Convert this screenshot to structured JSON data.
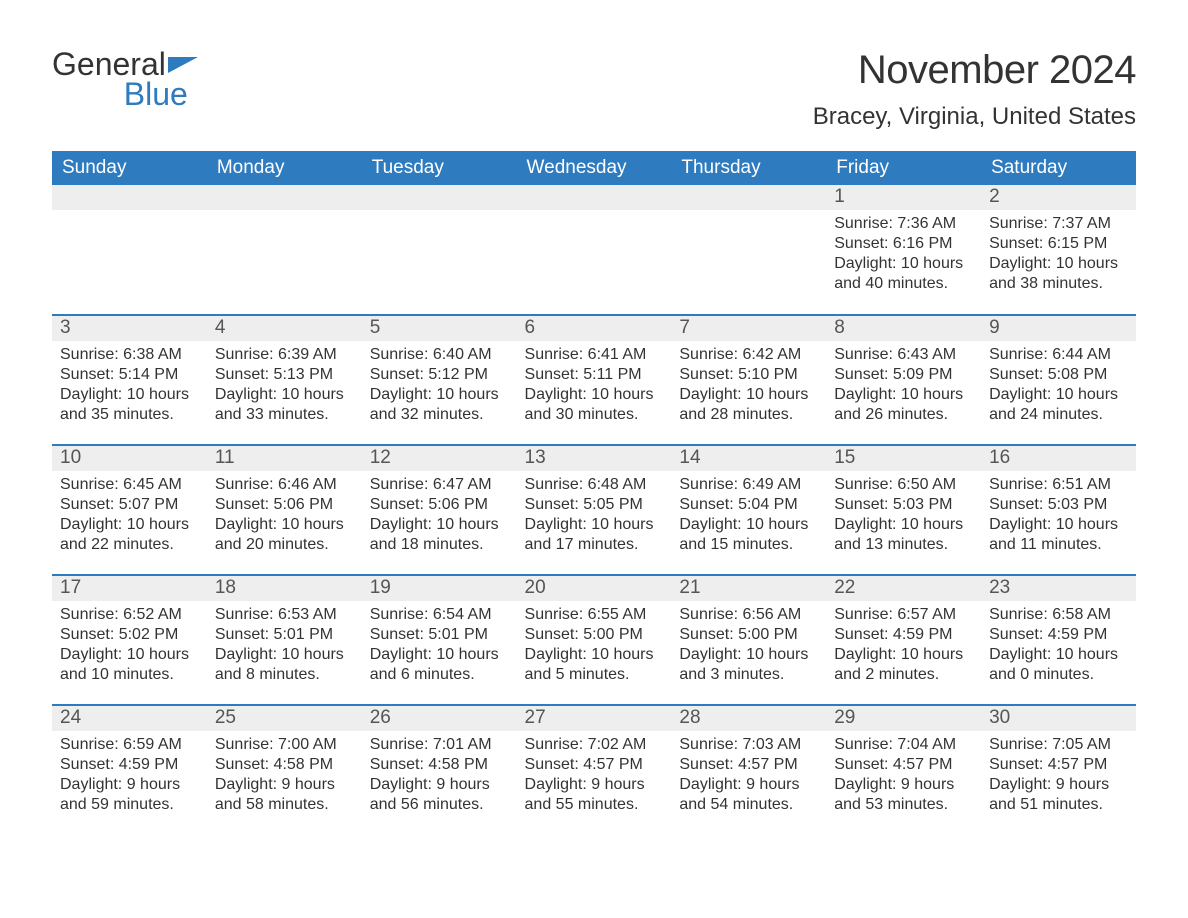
{
  "logo": {
    "text_general": "General",
    "text_blue": "Blue",
    "flag_color": "#2f7bbf"
  },
  "title": "November 2024",
  "location": "Bracey, Virginia, United States",
  "colors": {
    "header_bg": "#2f7bbf",
    "header_text": "#ffffff",
    "daynum_bg": "#eeeeee",
    "daynum_text": "#555555",
    "body_text": "#333333",
    "row_divider": "#2f7bbf",
    "page_bg": "#ffffff"
  },
  "typography": {
    "title_fontsize": 40,
    "location_fontsize": 24,
    "header_fontsize": 19,
    "daynum_fontsize": 19,
    "details_fontsize": 16,
    "logo_fontsize": 32
  },
  "weekdays": [
    "Sunday",
    "Monday",
    "Tuesday",
    "Wednesday",
    "Thursday",
    "Friday",
    "Saturday"
  ],
  "weeks": [
    [
      null,
      null,
      null,
      null,
      null,
      {
        "n": "1",
        "sunrise": "7:36 AM",
        "sunset": "6:16 PM",
        "daylight": "10 hours and 40 minutes."
      },
      {
        "n": "2",
        "sunrise": "7:37 AM",
        "sunset": "6:15 PM",
        "daylight": "10 hours and 38 minutes."
      }
    ],
    [
      {
        "n": "3",
        "sunrise": "6:38 AM",
        "sunset": "5:14 PM",
        "daylight": "10 hours and 35 minutes."
      },
      {
        "n": "4",
        "sunrise": "6:39 AM",
        "sunset": "5:13 PM",
        "daylight": "10 hours and 33 minutes."
      },
      {
        "n": "5",
        "sunrise": "6:40 AM",
        "sunset": "5:12 PM",
        "daylight": "10 hours and 32 minutes."
      },
      {
        "n": "6",
        "sunrise": "6:41 AM",
        "sunset": "5:11 PM",
        "daylight": "10 hours and 30 minutes."
      },
      {
        "n": "7",
        "sunrise": "6:42 AM",
        "sunset": "5:10 PM",
        "daylight": "10 hours and 28 minutes."
      },
      {
        "n": "8",
        "sunrise": "6:43 AM",
        "sunset": "5:09 PM",
        "daylight": "10 hours and 26 minutes."
      },
      {
        "n": "9",
        "sunrise": "6:44 AM",
        "sunset": "5:08 PM",
        "daylight": "10 hours and 24 minutes."
      }
    ],
    [
      {
        "n": "10",
        "sunrise": "6:45 AM",
        "sunset": "5:07 PM",
        "daylight": "10 hours and 22 minutes."
      },
      {
        "n": "11",
        "sunrise": "6:46 AM",
        "sunset": "5:06 PM",
        "daylight": "10 hours and 20 minutes."
      },
      {
        "n": "12",
        "sunrise": "6:47 AM",
        "sunset": "5:06 PM",
        "daylight": "10 hours and 18 minutes."
      },
      {
        "n": "13",
        "sunrise": "6:48 AM",
        "sunset": "5:05 PM",
        "daylight": "10 hours and 17 minutes."
      },
      {
        "n": "14",
        "sunrise": "6:49 AM",
        "sunset": "5:04 PM",
        "daylight": "10 hours and 15 minutes."
      },
      {
        "n": "15",
        "sunrise": "6:50 AM",
        "sunset": "5:03 PM",
        "daylight": "10 hours and 13 minutes."
      },
      {
        "n": "16",
        "sunrise": "6:51 AM",
        "sunset": "5:03 PM",
        "daylight": "10 hours and 11 minutes."
      }
    ],
    [
      {
        "n": "17",
        "sunrise": "6:52 AM",
        "sunset": "5:02 PM",
        "daylight": "10 hours and 10 minutes."
      },
      {
        "n": "18",
        "sunrise": "6:53 AM",
        "sunset": "5:01 PM",
        "daylight": "10 hours and 8 minutes."
      },
      {
        "n": "19",
        "sunrise": "6:54 AM",
        "sunset": "5:01 PM",
        "daylight": "10 hours and 6 minutes."
      },
      {
        "n": "20",
        "sunrise": "6:55 AM",
        "sunset": "5:00 PM",
        "daylight": "10 hours and 5 minutes."
      },
      {
        "n": "21",
        "sunrise": "6:56 AM",
        "sunset": "5:00 PM",
        "daylight": "10 hours and 3 minutes."
      },
      {
        "n": "22",
        "sunrise": "6:57 AM",
        "sunset": "4:59 PM",
        "daylight": "10 hours and 2 minutes."
      },
      {
        "n": "23",
        "sunrise": "6:58 AM",
        "sunset": "4:59 PM",
        "daylight": "10 hours and 0 minutes."
      }
    ],
    [
      {
        "n": "24",
        "sunrise": "6:59 AM",
        "sunset": "4:59 PM",
        "daylight": "9 hours and 59 minutes."
      },
      {
        "n": "25",
        "sunrise": "7:00 AM",
        "sunset": "4:58 PM",
        "daylight": "9 hours and 58 minutes."
      },
      {
        "n": "26",
        "sunrise": "7:01 AM",
        "sunset": "4:58 PM",
        "daylight": "9 hours and 56 minutes."
      },
      {
        "n": "27",
        "sunrise": "7:02 AM",
        "sunset": "4:57 PM",
        "daylight": "9 hours and 55 minutes."
      },
      {
        "n": "28",
        "sunrise": "7:03 AM",
        "sunset": "4:57 PM",
        "daylight": "9 hours and 54 minutes."
      },
      {
        "n": "29",
        "sunrise": "7:04 AM",
        "sunset": "4:57 PM",
        "daylight": "9 hours and 53 minutes."
      },
      {
        "n": "30",
        "sunrise": "7:05 AM",
        "sunset": "4:57 PM",
        "daylight": "9 hours and 51 minutes."
      }
    ]
  ],
  "labels": {
    "sunrise": "Sunrise: ",
    "sunset": "Sunset: ",
    "daylight": "Daylight: "
  }
}
